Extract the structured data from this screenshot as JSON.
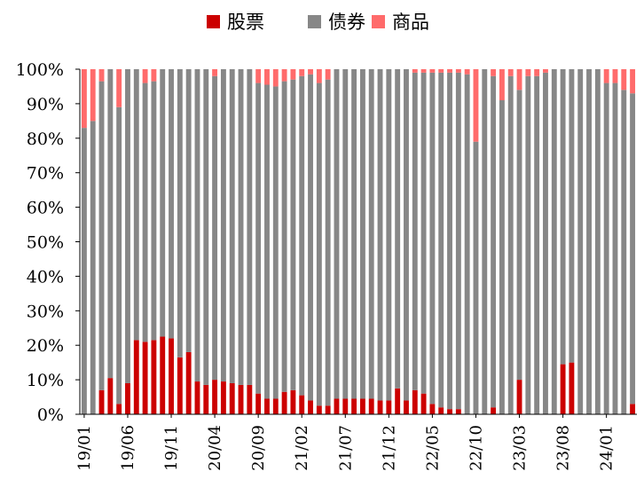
{
  "chart_data": {
    "type": "bar",
    "stacked": true,
    "normalized": true,
    "colors": {
      "股票": "#cc0000",
      "债券": "#878787",
      "商品": "#ff6b6b"
    },
    "legend": [
      "股票",
      "债券",
      "商品"
    ],
    "legend_position": "top",
    "grid": false,
    "y_ticks": [
      "0%",
      "10%",
      "20%",
      "30%",
      "40%",
      "50%",
      "60%",
      "70%",
      "80%",
      "90%",
      "100%"
    ],
    "x_tick_labels": [
      "19/01",
      "19/06",
      "19/11",
      "20/04",
      "20/09",
      "21/02",
      "21/07",
      "21/12",
      "22/05",
      "22/10",
      "23/03",
      "23/08",
      "24/01"
    ],
    "categories": [
      "19/01",
      "19/02",
      "19/03",
      "19/04",
      "19/05",
      "19/06",
      "19/07",
      "19/08",
      "19/09",
      "19/10",
      "19/11",
      "19/12",
      "20/01",
      "20/02",
      "20/03",
      "20/04",
      "20/05",
      "20/06",
      "20/07",
      "20/08",
      "20/09",
      "20/10",
      "20/11",
      "20/12",
      "21/01",
      "21/02",
      "21/03",
      "21/04",
      "21/05",
      "21/06",
      "21/07",
      "21/08",
      "21/09",
      "21/10",
      "21/11",
      "21/12",
      "22/01",
      "22/02",
      "22/03",
      "22/04",
      "22/05",
      "22/06",
      "22/07",
      "22/08",
      "22/09",
      "22/10",
      "22/11",
      "22/12",
      "23/01",
      "23/02",
      "23/03",
      "23/04",
      "23/05",
      "23/06",
      "23/07",
      "23/08",
      "23/09",
      "23/10",
      "23/11",
      "23/12",
      "24/01",
      "24/02",
      "24/03",
      "24/04"
    ],
    "ylim": [
      0,
      100
    ],
    "series": [
      {
        "name": "股票",
        "values": [
          0,
          0,
          7,
          10.5,
          3,
          9,
          21.5,
          21,
          21.5,
          22.5,
          22,
          16.5,
          18,
          9.5,
          8.5,
          10,
          9.5,
          9,
          8.5,
          8.5,
          6,
          4.5,
          4.5,
          6.5,
          7,
          5.5,
          4,
          2.5,
          2.5,
          4.5,
          4.5,
          4.5,
          4.5,
          4.5,
          4,
          4,
          7.5,
          4,
          7,
          6,
          3,
          2,
          1.5,
          1.5,
          0,
          0,
          0,
          2,
          0,
          0,
          10,
          0,
          0,
          0,
          0,
          14.5,
          15,
          0,
          0,
          0,
          0,
          0,
          0,
          3
        ]
      },
      {
        "name": "债券",
        "values": [
          83,
          85,
          89.5,
          89.5,
          86,
          91,
          78.5,
          75,
          75,
          77.5,
          78,
          83.5,
          82,
          90.5,
          91.5,
          88,
          90.5,
          91,
          91.5,
          91.5,
          90,
          91,
          90.5,
          90,
          90,
          92.5,
          94.5,
          93.5,
          94.5,
          95.5,
          95.5,
          95.5,
          95.5,
          95.5,
          96,
          96,
          92.5,
          96,
          92,
          93,
          96,
          97,
          97.5,
          97.5,
          98.5,
          79,
          100,
          96,
          91,
          98,
          84,
          98,
          98,
          99,
          100,
          85.5,
          85,
          100,
          100,
          100,
          96,
          96,
          94,
          90
        ]
      },
      {
        "name": "商品",
        "values": [
          17,
          15,
          3.5,
          0,
          11,
          0,
          0,
          4,
          3.5,
          0,
          0,
          0,
          0,
          0,
          0,
          2,
          0,
          0,
          0,
          0,
          4,
          4.5,
          5,
          3.5,
          3,
          2,
          1.5,
          4,
          3,
          0,
          0,
          0,
          0,
          0,
          0,
          0,
          0,
          0,
          1,
          1,
          1,
          1,
          1,
          1,
          1.5,
          21,
          0,
          2,
          9,
          2,
          6,
          2,
          2,
          1,
          0,
          0,
          0,
          0,
          0,
          0,
          4,
          4,
          6,
          7
        ]
      }
    ]
  }
}
